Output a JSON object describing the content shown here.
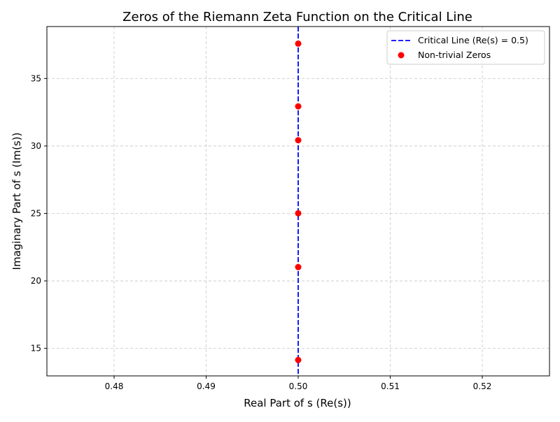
{
  "chart_data": {
    "type": "scatter",
    "title": "Zeros of the Riemann Zeta Function on the Critical Line",
    "xlabel": "Real Part of s (Re(s))",
    "ylabel": "Imaginary Part of s (Im(s))",
    "xlim": [
      0.4727,
      0.5273
    ],
    "ylim": [
      12.96,
      38.85
    ],
    "xticks": [
      0.48,
      0.49,
      0.5,
      0.51,
      0.52
    ],
    "xtick_labels": [
      "0.48",
      "0.49",
      "0.50",
      "0.51",
      "0.52"
    ],
    "yticks": [
      15,
      20,
      25,
      30,
      35
    ],
    "ytick_labels": [
      "15",
      "20",
      "25",
      "30",
      "35"
    ],
    "grid": true,
    "legend_position": "top-right",
    "series": [
      {
        "name": "Critical Line (Re(s) = 0.5)",
        "kind": "vline",
        "x": 0.5,
        "color": "#0000ff",
        "linestyle": "dashed"
      },
      {
        "name": "Non-trivial Zeros",
        "kind": "scatter",
        "color": "#ff0000",
        "points": [
          {
            "x": 0.5,
            "y": 14.135
          },
          {
            "x": 0.5,
            "y": 21.022
          },
          {
            "x": 0.5,
            "y": 25.011
          },
          {
            "x": 0.5,
            "y": 30.425
          },
          {
            "x": 0.5,
            "y": 32.935
          },
          {
            "x": 0.5,
            "y": 37.586
          }
        ]
      }
    ]
  }
}
